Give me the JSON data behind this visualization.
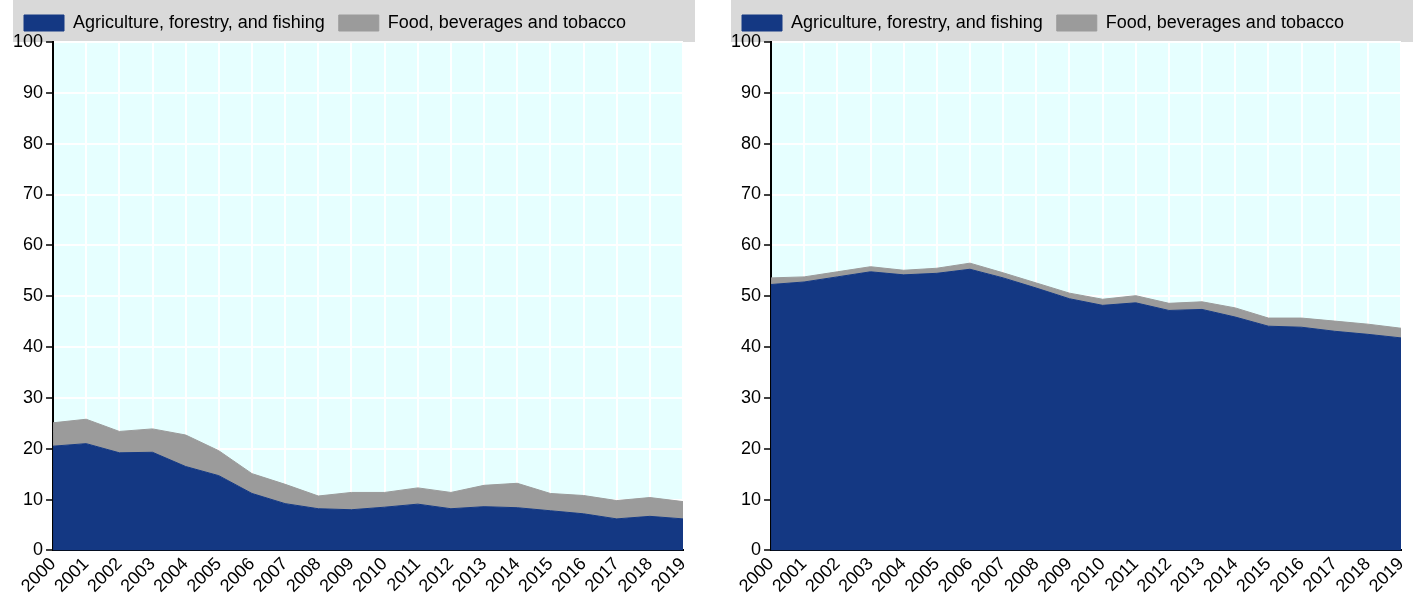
{
  "chart_data": [
    {
      "type": "area",
      "stacked": true,
      "legend": "top",
      "grid": true,
      "categories": [
        "2000",
        "2001",
        "2002",
        "2003",
        "2004",
        "2005",
        "2006",
        "2007",
        "2008",
        "2009",
        "2010",
        "2011",
        "2012",
        "2013",
        "2014",
        "2015",
        "2016",
        "2017",
        "2018",
        "2019"
      ],
      "ylim": [
        0,
        100
      ],
      "yticks": [
        0,
        10,
        20,
        30,
        40,
        50,
        60,
        70,
        80,
        90,
        100
      ],
      "series": [
        {
          "name": "Agriculture, forestry, and fishing",
          "color": "#143883",
          "values": [
            20.5,
            21,
            19.2,
            19.3,
            16.5,
            14.7,
            11.2,
            9.2,
            8.2,
            8,
            8.5,
            9.1,
            8.2,
            8.6,
            8.4,
            7.8,
            7.2,
            6.2,
            6.7,
            6.2
          ]
        },
        {
          "name": "Food, beverages and tobacco",
          "color": "#9b9b9b",
          "values": [
            4.6,
            4.8,
            4.2,
            4.6,
            6.2,
            4.9,
            3.9,
            3.8,
            2.5,
            3.4,
            2.9,
            3.2,
            3.2,
            4.2,
            4.8,
            3.4,
            3.6,
            3.6,
            3.7,
            3.4
          ]
        }
      ]
    },
    {
      "type": "area",
      "stacked": true,
      "legend": "top",
      "grid": true,
      "categories": [
        "2000",
        "2001",
        "2002",
        "2003",
        "2004",
        "2005",
        "2006",
        "2007",
        "2008",
        "2009",
        "2010",
        "2011",
        "2012",
        "2013",
        "2014",
        "2015",
        "2016",
        "2017",
        "2018",
        "2019"
      ],
      "ylim": [
        0,
        100
      ],
      "yticks": [
        0,
        10,
        20,
        30,
        40,
        50,
        60,
        70,
        80,
        90,
        100
      ],
      "series": [
        {
          "name": "Agriculture, forestry, and fishing",
          "color": "#143883",
          "values": [
            52.3,
            52.8,
            53.8,
            54.8,
            54.2,
            54.5,
            55.3,
            53.6,
            51.6,
            49.5,
            48.2,
            48.7,
            47.2,
            47.4,
            45.9,
            44.1,
            43.9,
            43.1,
            42.5,
            41.8
          ]
        },
        {
          "name": "Food, beverages and tobacco",
          "color": "#9b9b9b",
          "values": [
            1.3,
            1,
            1,
            1,
            0.9,
            1,
            1.2,
            1,
            1,
            1.1,
            1.2,
            1.4,
            1.4,
            1.5,
            1.8,
            1.6,
            1.8,
            2,
            2,
            1.9
          ]
        }
      ]
    }
  ]
}
